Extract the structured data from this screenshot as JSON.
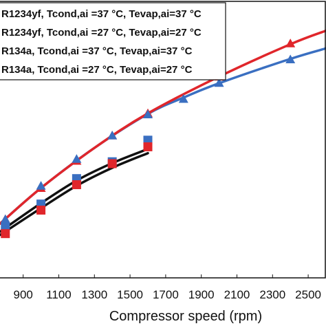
{
  "chart_data": {
    "type": "scatter",
    "title": "",
    "xlabel": "Compressor speed (rpm)",
    "ylabel": "",
    "xlim": [
      770,
      2600
    ],
    "ylim": [
      0,
      1
    ],
    "x_ticks": [
      "900",
      "1100",
      "1300",
      "1500",
      "1700",
      "1900",
      "2100",
      "2300",
      "2500"
    ],
    "legend_position": "top-left",
    "series": [
      {
        "name": "R1234yf, Tcond,ai =37 °C, Tevap,ai=37 °C",
        "color": "#e0262b",
        "marker": "triangle",
        "x": [
          800,
          1000,
          1200,
          1400,
          1600,
          2000,
          2400
        ],
        "y": [
          0.212,
          0.325,
          0.423,
          0.515,
          0.595,
          0.728,
          0.848
        ],
        "fit": [
          [
            770,
            0.196
          ],
          [
            1000,
            0.325
          ],
          [
            1300,
            0.47
          ],
          [
            1600,
            0.595
          ],
          [
            2000,
            0.728
          ],
          [
            2400,
            0.845
          ],
          [
            2600,
            0.894
          ]
        ]
      },
      {
        "name": "R1234yf, Tcond,ai =27 °C, Tevap,ai=27 °C",
        "color": "#3a6fc1",
        "marker": "triangle",
        "x": [
          800,
          1000,
          1200,
          1400,
          1600,
          1800,
          2000,
          2400
        ],
        "y": [
          0.212,
          0.333,
          0.43,
          0.515,
          0.591,
          0.647,
          0.705,
          0.79
        ],
        "fit": [
          [
            770,
            0.196
          ],
          [
            1000,
            0.325
          ],
          [
            1300,
            0.47
          ],
          [
            1600,
            0.593
          ],
          [
            1800,
            0.652
          ],
          [
            2000,
            0.704
          ],
          [
            2400,
            0.792
          ],
          [
            2600,
            0.83
          ]
        ]
      },
      {
        "name": "R134a, Tcond,ai =37 °C, Tevap,ai=37 °C",
        "color": "#3a6fc1",
        "marker": "square",
        "x": [
          800,
          1000,
          1200,
          1400,
          1600
        ],
        "y": [
          0.185,
          0.267,
          0.359,
          0.42,
          0.498
        ],
        "fit": [
          [
            770,
            0.167
          ],
          [
            1000,
            0.27
          ],
          [
            1200,
            0.352
          ],
          [
            1400,
            0.415
          ],
          [
            1600,
            0.466
          ]
        ]
      },
      {
        "name": "R134a, Tcond,ai =27 °C, Tevap,ai=27 °C",
        "color": "#e0262b",
        "marker": "square",
        "x": [
          800,
          1000,
          1200,
          1400,
          1600
        ],
        "y": [
          0.16,
          0.245,
          0.337,
          0.413,
          0.474
        ],
        "fit": [
          [
            770,
            0.155
          ],
          [
            1000,
            0.252
          ],
          [
            1200,
            0.333
          ],
          [
            1400,
            0.398
          ],
          [
            1600,
            0.451
          ]
        ]
      }
    ]
  }
}
